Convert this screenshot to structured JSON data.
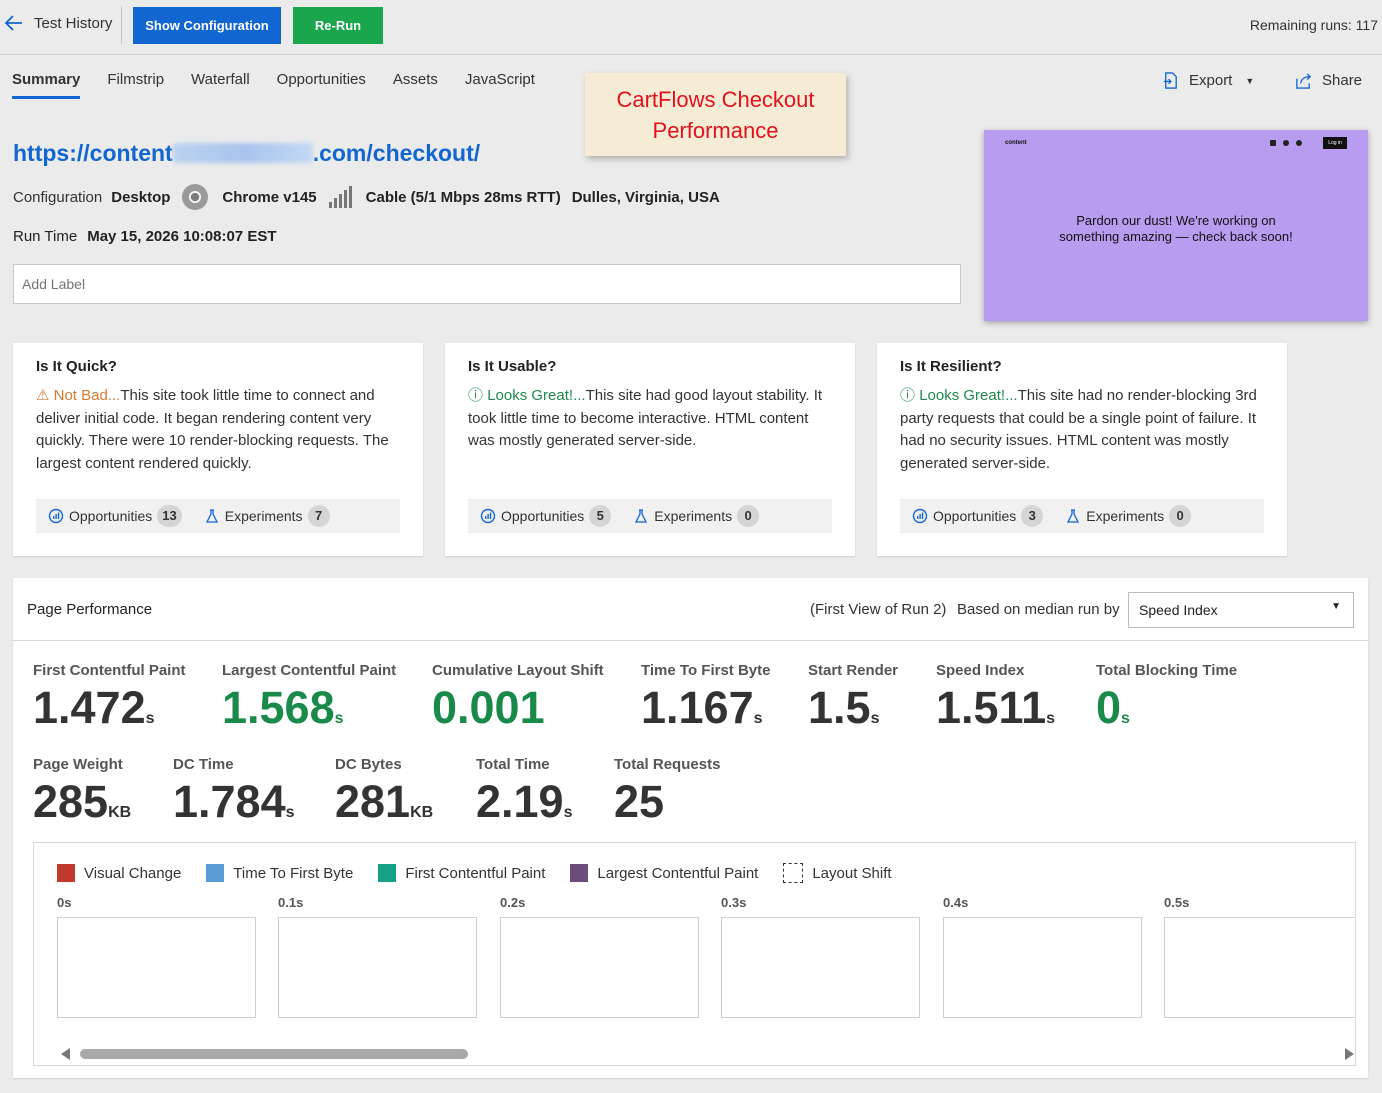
{
  "topbar": {
    "back_label": "Test History",
    "show_config_label": "Show Configuration",
    "rerun_label": "Re-Run",
    "remaining_runs": "Remaining runs: 117"
  },
  "tabs": [
    {
      "label": "Summary",
      "active": true
    },
    {
      "label": "Filmstrip"
    },
    {
      "label": "Waterfall"
    },
    {
      "label": "Opportunities"
    },
    {
      "label": "Assets"
    },
    {
      "label": "JavaScript"
    }
  ],
  "actions": {
    "export_label": "Export",
    "share_label": "Share"
  },
  "note": {
    "line1": "CartFlows Checkout",
    "line2": "Performance"
  },
  "test": {
    "url_prefix": "https://content",
    "url_suffix": ".com/checkout/",
    "config_label": "Configuration",
    "device": "Desktop",
    "browser": "Chrome v145",
    "connection": "Cable (5/1 Mbps 28ms RTT)",
    "location": "Dulles, Virginia, USA",
    "run_time_label": "Run Time",
    "run_time": "May 15, 2026 10:08:07 EST",
    "label_placeholder": "Add Label"
  },
  "preview": {
    "brand": "content",
    "login": "Log in",
    "message_line1": "Pardon our dust! We're working on",
    "message_line2": "something amazing — check back soon!"
  },
  "cards": [
    {
      "title": "Is It Quick?",
      "status": "Not Bad...",
      "status_type": "warn",
      "text": "This site took little time to connect and deliver initial code. It began rendering content very quickly. There were 10 render-blocking requests. The largest content rendered quickly.",
      "opportunities_label": "Opportunities",
      "opportunities": "13",
      "experiments_label": "Experiments",
      "experiments": "7"
    },
    {
      "title": "Is It Usable?",
      "status": "Looks Great!...",
      "status_type": "good",
      "text": "This site had good layout stability. It took little time to become interactive. HTML content was mostly generated server-side.",
      "opportunities_label": "Opportunities",
      "opportunities": "5",
      "experiments_label": "Experiments",
      "experiments": "0"
    },
    {
      "title": "Is It Resilient?",
      "status": "Looks Great!...",
      "status_type": "good",
      "text": "This site had no render-blocking 3rd party requests that could be a single point of failure. It had no security issues. HTML content was mostly generated server-side.",
      "opportunities_label": "Opportunities",
      "opportunities": "3",
      "experiments_label": "Experiments",
      "experiments": "0"
    }
  ],
  "performance": {
    "title": "Page Performance",
    "run_info": "(First View of Run 2)",
    "based_on": "Based on median run by",
    "metric_select": "Speed Index",
    "row1": [
      {
        "label": "First Contentful Paint",
        "value": "1.472",
        "unit": "s",
        "green": false
      },
      {
        "label": "Largest Contentful Paint",
        "value": "1.568",
        "unit": "s",
        "green": true
      },
      {
        "label": "Cumulative Layout Shift",
        "value": "0.001",
        "unit": "",
        "green": true
      },
      {
        "label": "Time To First Byte",
        "value": "1.167",
        "unit": "s",
        "green": false
      },
      {
        "label": "Start Render",
        "value": "1.5",
        "unit": "s",
        "green": false
      },
      {
        "label": "Speed Index",
        "value": "1.511",
        "unit": "s",
        "green": false
      },
      {
        "label": "Total Blocking Time",
        "value": "0",
        "unit": "s",
        "green": true
      }
    ],
    "row2": [
      {
        "label": "Page Weight",
        "value": "285",
        "unit": "KB"
      },
      {
        "label": "DC Time",
        "value": "1.784",
        "unit": "s"
      },
      {
        "label": "DC Bytes",
        "value": "281",
        "unit": "KB"
      },
      {
        "label": "Total Time",
        "value": "2.19",
        "unit": "s"
      },
      {
        "label": "Total Requests",
        "value": "25",
        "unit": ""
      }
    ]
  },
  "filmstrip": {
    "legend": [
      {
        "label": "Visual Change",
        "color": "#c0392b"
      },
      {
        "label": "Time To First Byte",
        "color": "#5b9bd5"
      },
      {
        "label": "First Contentful Paint",
        "color": "#16a085"
      },
      {
        "label": "Largest Contentful Paint",
        "color": "#6b4c7a"
      },
      {
        "label": "Layout Shift",
        "color": "dashed"
      }
    ],
    "frames": [
      "0s",
      "0.1s",
      "0.2s",
      "0.3s",
      "0.4s",
      "0.5s"
    ]
  },
  "colors": {
    "accent": "#1266d1",
    "rerun": "#1aa64c",
    "good": "#1a8a4a",
    "warn": "#d87a2e",
    "note_text": "#e0121b",
    "preview_bg": "#b89cf0"
  }
}
